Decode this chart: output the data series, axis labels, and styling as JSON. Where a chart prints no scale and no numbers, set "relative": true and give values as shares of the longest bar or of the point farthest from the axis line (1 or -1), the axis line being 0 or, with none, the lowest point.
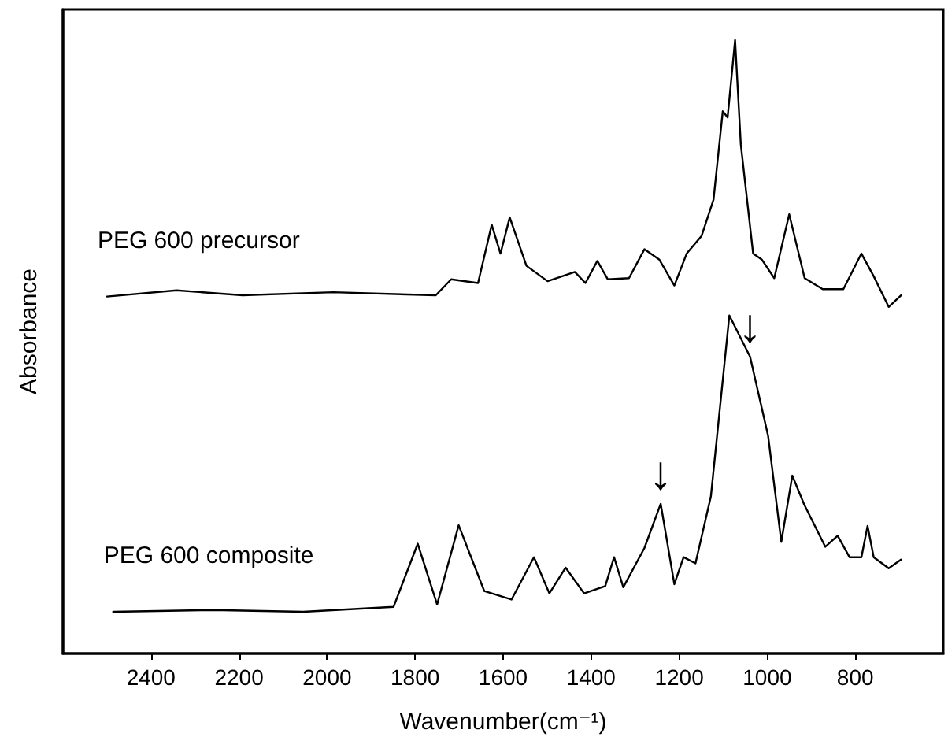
{
  "chart_data": {
    "type": "line",
    "relative": true,
    "xlabel": "Wavenumber(cm⁻¹)",
    "ylabel": "Absorbance",
    "xlim": [
      2600,
      600
    ],
    "xticks": [
      2400,
      2200,
      2000,
      1800,
      1600,
      1400,
      1200,
      1000,
      800
    ],
    "grid": false,
    "legend": false,
    "marker": "none",
    "line_style": "solid",
    "series": [
      {
        "name": "PEG 600 precursor",
        "color": "#000000",
        "x": [
          2500,
          2342,
          2192,
          1986,
          1753,
          1718,
          1657,
          1626,
          1606,
          1585,
          1547,
          1499,
          1437,
          1413,
          1386,
          1362,
          1314,
          1279,
          1245,
          1211,
          1183,
          1149,
          1122,
          1101,
          1090,
          1073,
          1060,
          1032,
          1012,
          984,
          950,
          915,
          874,
          827,
          786,
          758,
          724,
          696
        ],
        "values": [
          0.582,
          0.592,
          0.584,
          0.589,
          0.584,
          0.61,
          0.604,
          0.699,
          0.652,
          0.711,
          0.632,
          0.607,
          0.622,
          0.604,
          0.64,
          0.61,
          0.612,
          0.659,
          0.642,
          0.6,
          0.652,
          0.681,
          0.74,
          0.884,
          0.874,
          1.0,
          0.83,
          0.652,
          0.642,
          0.612,
          0.716,
          0.612,
          0.594,
          0.594,
          0.652,
          0.615,
          0.565,
          0.584
        ]
      },
      {
        "name": "PEG 600 composite",
        "color": "#000000",
        "x": [
          2486,
          2260,
          2054,
          1849,
          1794,
          1750,
          1701,
          1643,
          1581,
          1530,
          1495,
          1458,
          1416,
          1368,
          1348,
          1327,
          1279,
          1242,
          1211,
          1190,
          1163,
          1128,
          1086,
          1039,
          998,
          968,
          943,
          916,
          868,
          840,
          813,
          786,
          772,
          758,
          724,
          696
        ],
        "values": [
          0.068,
          0.071,
          0.068,
          0.076,
          0.179,
          0.08,
          0.209,
          0.102,
          0.088,
          0.157,
          0.098,
          0.14,
          0.098,
          0.11,
          0.157,
          0.108,
          0.172,
          0.244,
          0.113,
          0.157,
          0.147,
          0.256,
          0.551,
          0.484,
          0.355,
          0.182,
          0.29,
          0.243,
          0.174,
          0.192,
          0.157,
          0.157,
          0.208,
          0.157,
          0.139,
          0.153
        ]
      }
    ],
    "annotations": [
      {
        "text": "↓",
        "x": 1242,
        "y": 0.244
      },
      {
        "text": "↓",
        "x": 1039,
        "y": 0.484
      }
    ]
  }
}
